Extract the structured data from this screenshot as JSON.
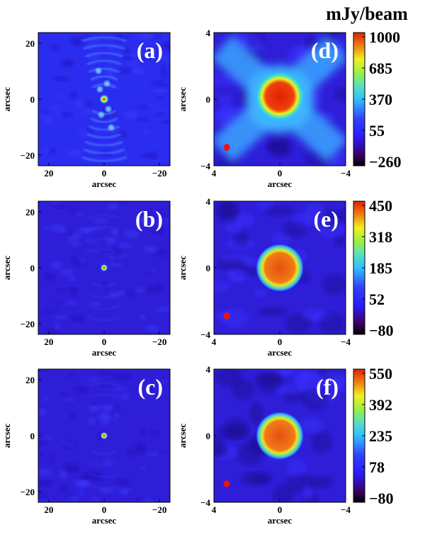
{
  "figure": {
    "colorbar_unit": "mJy/beam",
    "panels": [
      {
        "label": "(a)",
        "xticks": [
          "20",
          "0",
          "−20"
        ],
        "yticks": [
          "20",
          "0",
          "−20"
        ],
        "xlabel": "arcsec",
        "ylabel": "arcsec",
        "kind": "wide",
        "psf": "strong"
      },
      {
        "label": "(b)",
        "xticks": [
          "20",
          "0",
          "−20"
        ],
        "yticks": [
          "20",
          "0",
          "−20"
        ],
        "xlabel": "arcsec",
        "ylabel": "arcsec",
        "kind": "wide",
        "psf": "weak"
      },
      {
        "label": "(c)",
        "xticks": [
          "20",
          "0",
          "−20"
        ],
        "yticks": [
          "20",
          "0",
          "−20"
        ],
        "xlabel": "arcsec",
        "ylabel": "arcsec",
        "kind": "wide",
        "psf": "weak"
      },
      {
        "label": "(d)",
        "xticks": [
          "4",
          "0",
          "−4"
        ],
        "yticks": [
          "4",
          "0",
          "−4"
        ],
        "xlabel": "arcsec",
        "ylabel": "arcsec",
        "kind": "zoom",
        "psf": "strong"
      },
      {
        "label": "(e)",
        "xticks": [
          "4",
          "0",
          "−4"
        ],
        "yticks": [
          "4",
          "0",
          "−4"
        ],
        "xlabel": "arcsec",
        "ylabel": "arcsec",
        "kind": "zoom",
        "psf": "weak"
      },
      {
        "label": "(f)",
        "xticks": [
          "4",
          "0",
          "−4"
        ],
        "yticks": [
          "4",
          "0",
          "−4"
        ],
        "xlabel": "arcsec",
        "ylabel": "arcsec",
        "kind": "zoom",
        "psf": "weak"
      }
    ],
    "colorbars": [
      {
        "ticks": [
          "1000",
          "685",
          "370",
          "55",
          "−260"
        ]
      },
      {
        "ticks": [
          "450",
          "318",
          "185",
          "52",
          "−80"
        ]
      },
      {
        "ticks": [
          "550",
          "392",
          "235",
          "78",
          "−80"
        ]
      }
    ],
    "colormap": [
      "#000000",
      "#3a0060",
      "#2a1cff",
      "#3040ff",
      "#30c0ff",
      "#58e0c0",
      "#9cf040",
      "#f0f020",
      "#f08010",
      "#e02000"
    ]
  }
}
